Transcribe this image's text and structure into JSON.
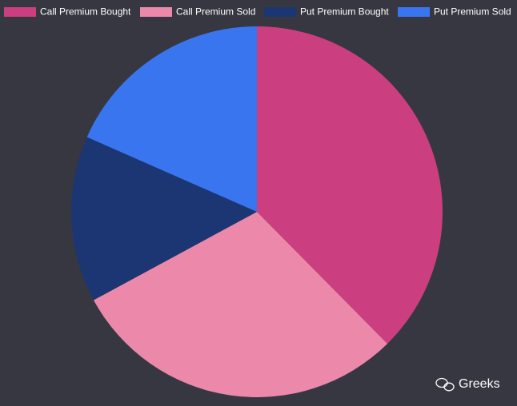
{
  "chart_data": {
    "type": "pie",
    "categories": [
      "Call Premium Bought",
      "Call Premium Sold",
      "Put Premium Bought",
      "Put Premium Sold"
    ],
    "values": [
      37.6,
      29.5,
      14.5,
      18.4
    ],
    "colors": [
      "#cb3e80",
      "#ec89aa",
      "#1b3672",
      "#3a75f0"
    ],
    "legend": "top",
    "watermark": "Greeks"
  }
}
